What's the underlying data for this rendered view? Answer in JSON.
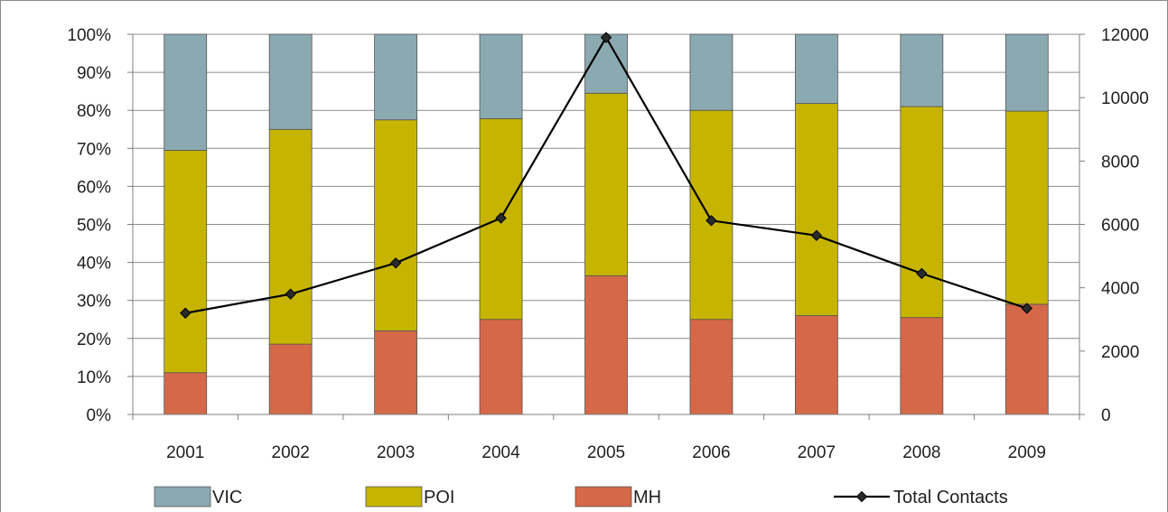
{
  "chart_data": {
    "type": "bar",
    "subtype": "stacked-percent-with-line",
    "categories": [
      "2001",
      "2002",
      "2003",
      "2004",
      "2005",
      "2006",
      "2007",
      "2008",
      "2009"
    ],
    "series": [
      {
        "name": "MH",
        "axis": "left",
        "color": "#d46848",
        "values": [
          11,
          18.5,
          22,
          25,
          36.5,
          25,
          26,
          25.5,
          29
        ]
      },
      {
        "name": "POI",
        "axis": "left",
        "color": "#c6b400",
        "values": [
          58.5,
          56.5,
          55.5,
          52.8,
          48,
          55,
          55.8,
          55.5,
          50.8
        ]
      },
      {
        "name": "VIC",
        "axis": "left",
        "color": "#8ba9b0",
        "values": [
          30.5,
          25,
          22.5,
          22.2,
          15.5,
          20,
          18.2,
          19,
          20.2
        ]
      },
      {
        "name": "Total Contacts",
        "axis": "right",
        "type": "line",
        "color": "#000000",
        "marker": "diamond",
        "values": [
          3200,
          3800,
          4780,
          6200,
          11900,
          6120,
          5650,
          4450,
          3350
        ]
      }
    ],
    "y_left": {
      "ylim": [
        0,
        100
      ],
      "ticks": [
        "0%",
        "10%",
        "20%",
        "30%",
        "40%",
        "50%",
        "60%",
        "70%",
        "80%",
        "90%",
        "100%"
      ]
    },
    "y_right": {
      "ylim": [
        0,
        12000
      ],
      "ticks": [
        "0",
        "2000",
        "4000",
        "6000",
        "8000",
        "10000",
        "12000"
      ]
    },
    "legend": {
      "position": "bottom",
      "order": [
        "VIC",
        "POI",
        "MH",
        "Total Contacts"
      ]
    },
    "grid": "horizontal"
  }
}
